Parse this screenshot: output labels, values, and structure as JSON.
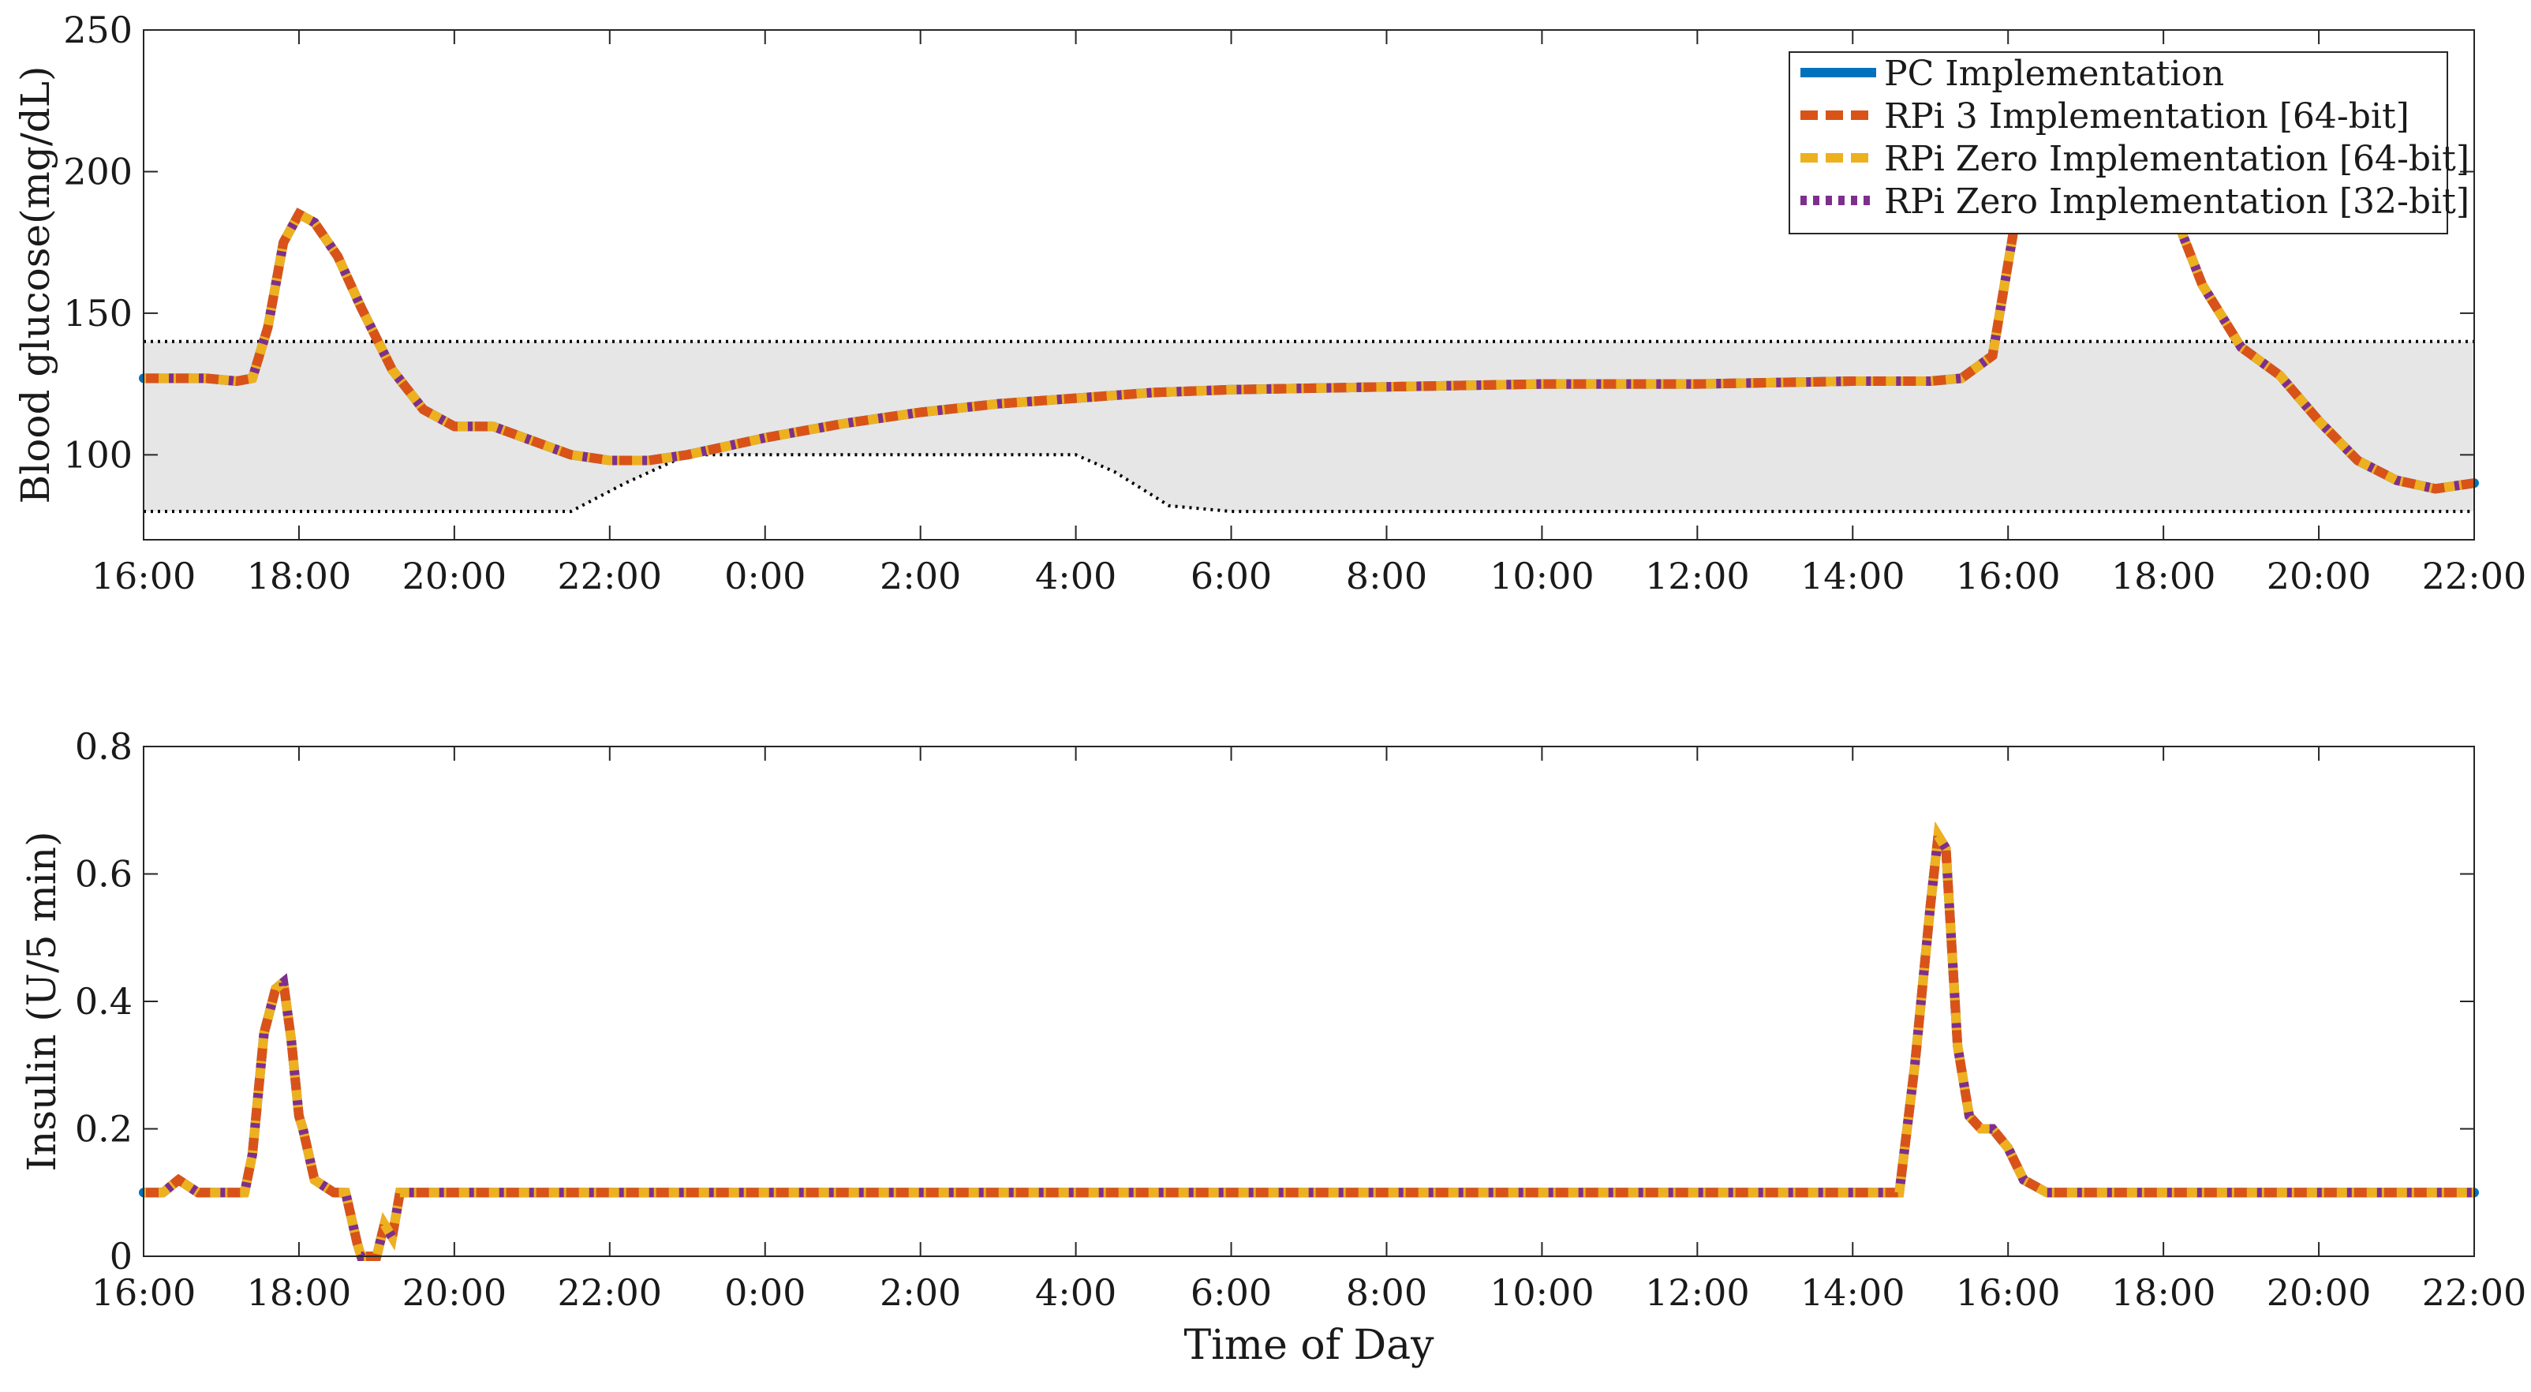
{
  "colors": {
    "pc": "#0072BD",
    "rpi3_64": "#D95319",
    "rpizero_64": "#EDB120",
    "rpizero_32": "#7E2F8E",
    "target_band_fill": "#E6E6E6",
    "target_band_line": "#000000"
  },
  "chart_data": [
    {
      "type": "line",
      "ylabel": "Blood glucose(mg/dL)",
      "xlabel": "",
      "x_unit": "hours since 16:00 (day 1)",
      "xlim": [
        0,
        30
      ],
      "ylim": [
        70,
        250
      ],
      "xticks": [
        0,
        2,
        4,
        6,
        8,
        10,
        12,
        14,
        16,
        18,
        20,
        22,
        24,
        26,
        28,
        30
      ],
      "xtick_labels": [
        "16:00",
        "18:00",
        "20:00",
        "22:00",
        "0:00",
        "2:00",
        "4:00",
        "6:00",
        "8:00",
        "10:00",
        "12:00",
        "14:00",
        "16:00",
        "18:00",
        "20:00",
        "22:00"
      ],
      "yticks": [
        100,
        150,
        200,
        250
      ],
      "ytick_labels": [
        "100",
        "150",
        "200",
        "250"
      ],
      "legend_position": "top-right",
      "legend": [
        {
          "label": "PC Implementation",
          "color_key": "pc",
          "style": "solid"
        },
        {
          "label": "RPi 3 Implementation [64-bit]",
          "color_key": "rpi3_64",
          "style": "dash"
        },
        {
          "label": "RPi Zero Implementation [64-bit]",
          "color_key": "rpizero_64",
          "style": "dash"
        },
        {
          "label": "RPi Zero Implementation [32-bit]",
          "color_key": "rpizero_32",
          "style": "dot"
        }
      ],
      "target_band": {
        "upper": {
          "x": [
            0,
            30
          ],
          "y": [
            140,
            140
          ]
        },
        "lower": {
          "x": [
            0,
            5.5,
            6.2,
            7,
            12,
            12.5,
            13.2,
            14,
            30
          ],
          "y": [
            80,
            80,
            90,
            100,
            100,
            94,
            82,
            80,
            80
          ]
        }
      },
      "series": [
        {
          "x": [
            0,
            0.8,
            1.2,
            1.4,
            1.6,
            1.8,
            2.0,
            2.2,
            2.5,
            2.8,
            3.2,
            3.6,
            4.0,
            4.5,
            5.0,
            5.5,
            6.0,
            6.5,
            7.0,
            7.5,
            8.0,
            9.0,
            10.0,
            11.0,
            12.0,
            13.0,
            14.0,
            16.0,
            18.0,
            20.0,
            22.0,
            23.0,
            23.4,
            23.8,
            24.2,
            24.6,
            25.0,
            25.5,
            26.0,
            26.5,
            27.0,
            27.5,
            28.0,
            28.5,
            29.0,
            29.5,
            30.0
          ],
          "y": [
            127,
            127,
            126,
            127,
            145,
            175,
            185,
            182,
            170,
            152,
            130,
            116,
            110,
            110,
            105,
            100,
            98,
            98,
            100,
            103,
            106,
            111,
            115,
            118,
            120,
            122,
            123,
            124,
            125,
            125,
            126,
            126,
            127,
            135,
            200,
            235,
            238,
            225,
            195,
            160,
            138,
            128,
            112,
            98,
            91,
            88,
            90
          ]
        }
      ]
    },
    {
      "type": "line",
      "ylabel": "Insulin (U/5 min)",
      "xlabel": "Time of Day",
      "x_unit": "hours since 16:00 (day 1)",
      "xlim": [
        0,
        30
      ],
      "ylim": [
        0,
        0.8
      ],
      "xticks": [
        0,
        2,
        4,
        6,
        8,
        10,
        12,
        14,
        16,
        18,
        20,
        22,
        24,
        26,
        28,
        30
      ],
      "xtick_labels": [
        "16:00",
        "18:00",
        "20:00",
        "22:00",
        "0:00",
        "2:00",
        "4:00",
        "6:00",
        "8:00",
        "10:00",
        "12:00",
        "14:00",
        "16:00",
        "18:00",
        "20:00",
        "22:00"
      ],
      "yticks": [
        0,
        0.2,
        0.4,
        0.6,
        0.8
      ],
      "ytick_labels": [
        "0",
        "0.2",
        "0.4",
        "0.6",
        "0.8"
      ],
      "series": [
        {
          "x": [
            0,
            0.25,
            0.45,
            0.7,
            1.0,
            1.3,
            1.4,
            1.55,
            1.7,
            1.8,
            1.9,
            2.0,
            2.05,
            2.2,
            2.45,
            2.6,
            2.75,
            2.8,
            3.0,
            3.1,
            3.2,
            3.3,
            4.0,
            8.0,
            12.0,
            16.0,
            20.0,
            22.0,
            22.6,
            22.8,
            23.0,
            23.1,
            23.2,
            23.35,
            23.5,
            23.65,
            23.8,
            24.0,
            24.2,
            24.5,
            24.8,
            25.0,
            25.3,
            25.6,
            26.0,
            28.0,
            30.0
          ],
          "y": [
            0.1,
            0.1,
            0.12,
            0.1,
            0.1,
            0.1,
            0.16,
            0.35,
            0.42,
            0.43,
            0.34,
            0.22,
            0.2,
            0.12,
            0.1,
            0.1,
            0.02,
            0,
            0,
            0.05,
            0.03,
            0.1,
            0.1,
            0.1,
            0.1,
            0.1,
            0.1,
            0.1,
            0.1,
            0.3,
            0.55,
            0.66,
            0.64,
            0.33,
            0.22,
            0.2,
            0.2,
            0.17,
            0.12,
            0.1,
            0.1,
            0.1,
            0.1,
            0.1,
            0.1,
            0.1,
            0.1
          ]
        }
      ]
    }
  ]
}
